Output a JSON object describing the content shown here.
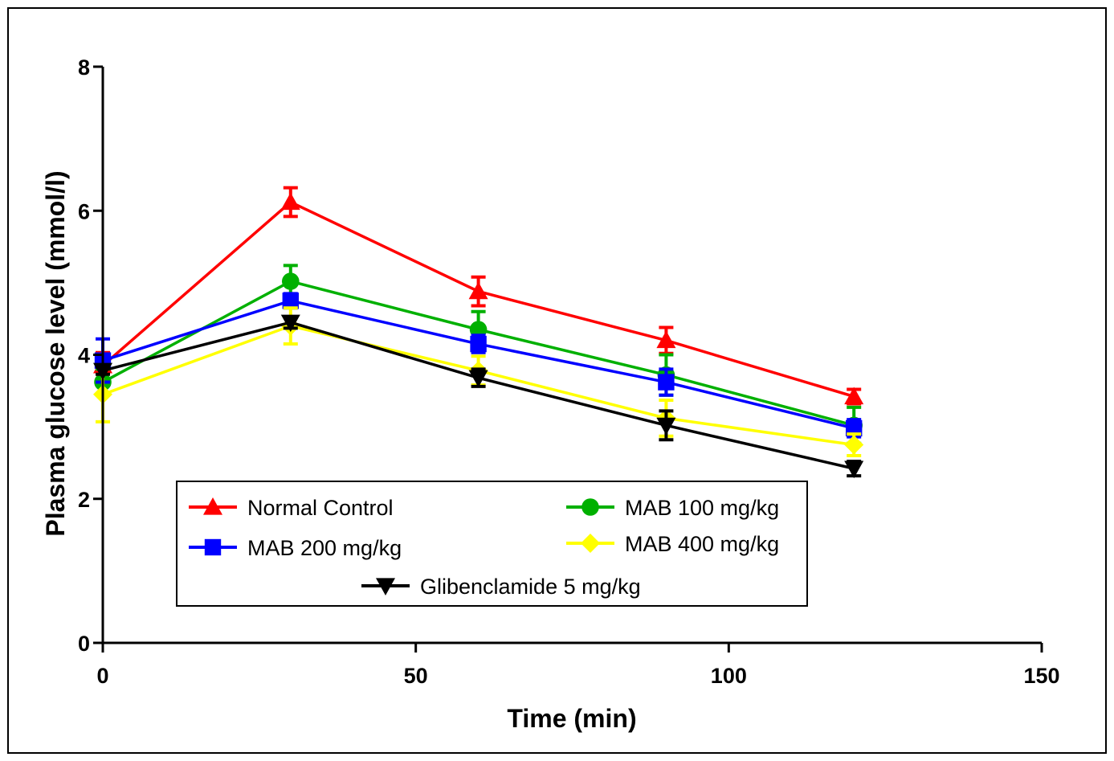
{
  "chart_data": {
    "type": "line",
    "xlabel": "Time (min)",
    "ylabel": "Plasma glucose level (mmol/l)",
    "xlim": [
      0,
      150
    ],
    "ylim": [
      0,
      8
    ],
    "xticks": [
      0,
      50,
      100,
      150
    ],
    "yticks": [
      0,
      2,
      4,
      6,
      8
    ],
    "grid": false,
    "legend_position": "bottom-center",
    "x": [
      0,
      30,
      60,
      90,
      120
    ],
    "series": [
      {
        "name": "Normal Control",
        "color": "#ff0000",
        "marker": "triangle-up",
        "values": [
          3.85,
          6.12,
          4.88,
          4.2,
          3.42
        ],
        "errors": [
          0.18,
          0.2,
          0.2,
          0.18,
          0.1
        ]
      },
      {
        "name": "MAB 100 mg/kg",
        "color": "#00b000",
        "marker": "circle",
        "values": [
          3.62,
          5.02,
          4.35,
          3.72,
          3.02
        ],
        "errors": [
          0.18,
          0.22,
          0.25,
          0.28,
          0.25
        ]
      },
      {
        "name": "MAB 200 mg/kg",
        "color": "#0000ff",
        "marker": "square",
        "values": [
          3.92,
          4.75,
          4.15,
          3.62,
          2.98
        ],
        "errors": [
          0.3,
          0.1,
          0.12,
          0.18,
          0.12
        ]
      },
      {
        "name": "MAB 400 mg/kg",
        "color": "#ffff00",
        "marker": "diamond",
        "values": [
          3.45,
          4.4,
          3.78,
          3.12,
          2.75
        ],
        "errors": [
          0.38,
          0.25,
          0.2,
          0.25,
          0.15
        ]
      },
      {
        "name": "Glibenclamide 5 mg/kg",
        "color": "#000000",
        "marker": "triangle-down",
        "values": [
          3.78,
          4.45,
          3.68,
          3.02,
          2.42
        ],
        "errors": [
          0.05,
          0.08,
          0.12,
          0.2,
          0.1
        ]
      }
    ]
  }
}
